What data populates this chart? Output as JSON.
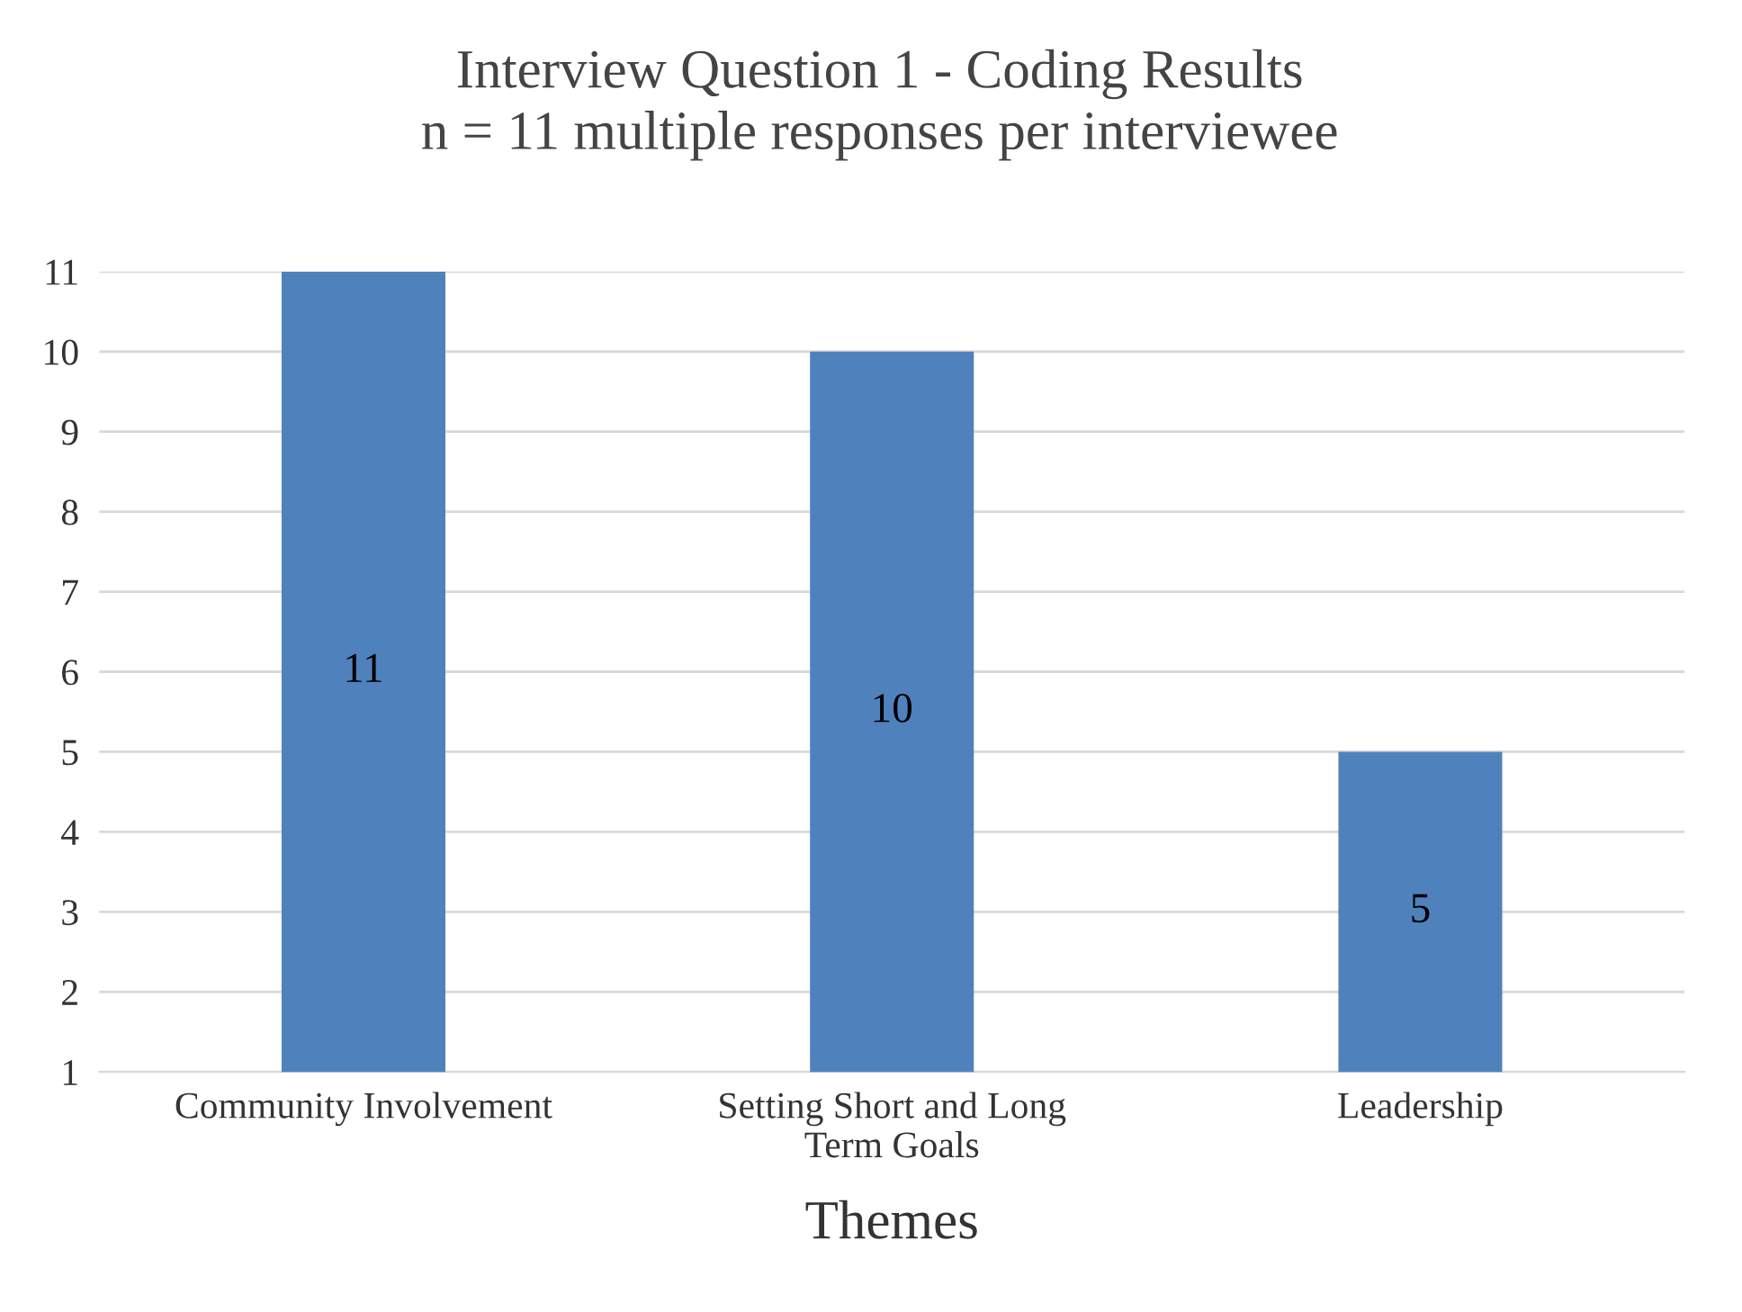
{
  "chart_data": {
    "type": "bar",
    "title": "Interview Question 1 - Coding Results\nn = 11 multiple responses per interviewee",
    "xlabel": "Themes",
    "categories": [
      "Community Involvement",
      "Setting Short and Long\nTerm Goals",
      "Leadership"
    ],
    "values": [
      11,
      10,
      5
    ],
    "color": "#4f81bd",
    "data_labels": true,
    "ylim": [
      1,
      11
    ],
    "yticks": [
      1,
      2,
      3,
      4,
      5,
      6,
      7,
      8,
      9,
      10,
      11
    ],
    "grid": "y",
    "legend": false
  }
}
